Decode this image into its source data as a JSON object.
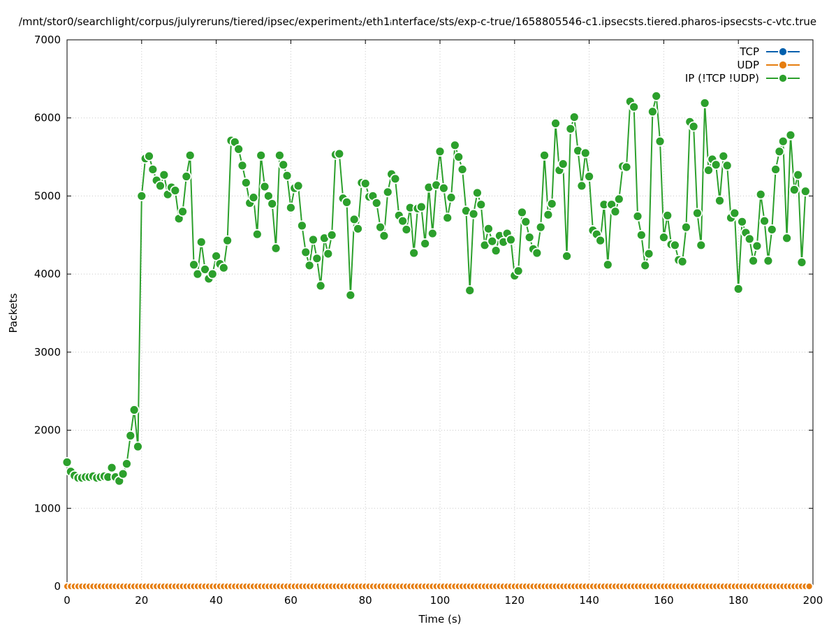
{
  "chart_data": {
    "type": "line",
    "title": "/mnt/stor0/searchlight/corpus/julyreruns/tiered/ipsec/experiment₂/eth1ᵢnterface/sts/exp-c-true/1658805546-c1.ipsecsts.tiered.pharos-ipsecsts-c-vtc.true",
    "xlabel": "Time (s)",
    "ylabel": "Packets",
    "xlim": [
      0,
      200
    ],
    "ylim": [
      0,
      7000
    ],
    "xticks": [
      "0",
      "20",
      "40",
      "60",
      "80",
      "100",
      "120",
      "140",
      "160",
      "180",
      "200"
    ],
    "yticks": [
      "0",
      "1000",
      "2000",
      "3000",
      "4000",
      "5000",
      "6000",
      "7000"
    ],
    "grid": true,
    "legend_position": "top-right",
    "series": [
      {
        "name": "TCP",
        "color": "#0060ad",
        "x_start": 0,
        "x_step": 1,
        "values": [
          0,
          0,
          0,
          0,
          0,
          0,
          0,
          0,
          0,
          0,
          0,
          0,
          0,
          0,
          0,
          0,
          0,
          0,
          0,
          0,
          0,
          0,
          0,
          0,
          0,
          0,
          0,
          0,
          0,
          0,
          0,
          0,
          0,
          0,
          0,
          0,
          0,
          0,
          0,
          0,
          0,
          0,
          0,
          0,
          0,
          0,
          0,
          0,
          0,
          0,
          0,
          0,
          0,
          0,
          0,
          0,
          0,
          0,
          0,
          0,
          0,
          0,
          0,
          0,
          0,
          0,
          0,
          0,
          0,
          0,
          0,
          0,
          0,
          0,
          0,
          0,
          0,
          0,
          0,
          0,
          0,
          0,
          0,
          0,
          0,
          0,
          0,
          0,
          0,
          0,
          0,
          0,
          0,
          0,
          0,
          0,
          0,
          0,
          0,
          0,
          0,
          0,
          0,
          0,
          0,
          0,
          0,
          0,
          0,
          0,
          0,
          0,
          0,
          0,
          0,
          0,
          0,
          0,
          0,
          0,
          0,
          0,
          0,
          0,
          0,
          0,
          0,
          0,
          0,
          0,
          0,
          0,
          0,
          0,
          0,
          0,
          0,
          0,
          0,
          0,
          0,
          0,
          0,
          0,
          0,
          0,
          0,
          0,
          0,
          0,
          0,
          0,
          0,
          0,
          0,
          0,
          0,
          0,
          0,
          0,
          0,
          0,
          0,
          0,
          0,
          0,
          0,
          0,
          0,
          0,
          0,
          0,
          0,
          0,
          0,
          0,
          0,
          0,
          0,
          0,
          0,
          0,
          0,
          0,
          0,
          0,
          0,
          0,
          0,
          0,
          0,
          0,
          0,
          0,
          0,
          0,
          0,
          0,
          0,
          0
        ]
      },
      {
        "name": "UDP",
        "color": "#e67e10",
        "x_start": 0,
        "x_step": 1,
        "values": [
          0,
          0,
          0,
          0,
          0,
          0,
          0,
          0,
          0,
          0,
          0,
          0,
          0,
          0,
          0,
          0,
          0,
          0,
          0,
          0,
          0,
          0,
          0,
          0,
          0,
          0,
          0,
          0,
          0,
          0,
          0,
          0,
          0,
          0,
          0,
          0,
          0,
          0,
          0,
          0,
          0,
          0,
          0,
          0,
          0,
          0,
          0,
          0,
          0,
          0,
          0,
          0,
          0,
          0,
          0,
          0,
          0,
          0,
          0,
          0,
          0,
          0,
          0,
          0,
          0,
          0,
          0,
          0,
          0,
          0,
          0,
          0,
          0,
          0,
          0,
          0,
          0,
          0,
          0,
          0,
          0,
          0,
          0,
          0,
          0,
          0,
          0,
          0,
          0,
          0,
          0,
          0,
          0,
          0,
          0,
          0,
          0,
          0,
          0,
          0,
          0,
          0,
          0,
          0,
          0,
          0,
          0,
          0,
          0,
          0,
          0,
          0,
          0,
          0,
          0,
          0,
          0,
          0,
          0,
          0,
          0,
          0,
          0,
          0,
          0,
          0,
          0,
          0,
          0,
          0,
          0,
          0,
          0,
          0,
          0,
          0,
          0,
          0,
          0,
          0,
          0,
          0,
          0,
          0,
          0,
          0,
          0,
          0,
          0,
          0,
          0,
          0,
          0,
          0,
          0,
          0,
          0,
          0,
          0,
          0,
          0,
          0,
          0,
          0,
          0,
          0,
          0,
          0,
          0,
          0,
          0,
          0,
          0,
          0,
          0,
          0,
          0,
          0,
          0,
          0,
          0,
          0,
          0,
          0,
          0,
          0,
          0,
          0,
          0,
          0,
          0,
          0,
          0,
          0,
          0,
          0,
          0,
          0,
          0,
          0
        ]
      },
      {
        "name": "IP (!TCP  !UDP)",
        "color": "#2ca02c",
        "x_start": 0,
        "x_step": 1,
        "values": [
          1590,
          1470,
          1420,
          1390,
          1390,
          1400,
          1400,
          1410,
          1390,
          1400,
          1410,
          1400,
          1520,
          1400,
          1350,
          1440,
          1570,
          1930,
          2260,
          1790,
          5000,
          5480,
          5510,
          5340,
          5200,
          5130,
          5270,
          5020,
          5110,
          5070,
          4710,
          4800,
          5250,
          5520,
          4120,
          4000,
          4410,
          4060,
          3940,
          4000,
          4230,
          4130,
          4080,
          4430,
          5710,
          5690,
          5600,
          5390,
          5170,
          4910,
          4980,
          4510,
          5520,
          5120,
          5000,
          4900,
          4330,
          5520,
          5400,
          5260,
          4850,
          5100,
          5130,
          4620,
          4280,
          4110,
          4440,
          4200,
          3850,
          4460,
          4260,
          4500,
          5530,
          5540,
          4970,
          4920,
          3730,
          4700,
          4580,
          5170,
          5160,
          4990,
          5000,
          4910,
          4600,
          4490,
          5050,
          5280,
          5220,
          4750,
          4680,
          4570,
          4850,
          4270,
          4840,
          4860,
          4390,
          5110,
          4520,
          5140,
          5570,
          5100,
          4720,
          4980,
          5650,
          5500,
          5340,
          4810,
          3790,
          4770,
          5040,
          4890,
          4370,
          4580,
          4420,
          4300,
          4490,
          4410,
          4520,
          4440,
          3980,
          4040,
          4790,
          4670,
          4470,
          4320,
          4270,
          4600,
          5520,
          4760,
          4900,
          5930,
          5330,
          5410,
          4230,
          5860,
          6010,
          5580,
          5130,
          5550,
          5250,
          4560,
          4510,
          4430,
          4890,
          4120,
          4890,
          4800,
          4960,
          5380,
          5370,
          6210,
          6140,
          4740,
          4500,
          4110,
          4260,
          6080,
          6280,
          5700,
          4470,
          4750,
          4380,
          4370,
          4180,
          4160,
          4600,
          5950,
          5890,
          4780,
          4370,
          6190,
          5330,
          5470,
          5400,
          4940,
          5510,
          5390,
          4720,
          4780,
          3810,
          4670,
          4530,
          4450,
          4170,
          4360,
          5020,
          4680,
          4170,
          4570,
          5340,
          5570,
          5700,
          4460,
          5780,
          5080,
          5270,
          4150,
          5060
        ]
      }
    ]
  }
}
